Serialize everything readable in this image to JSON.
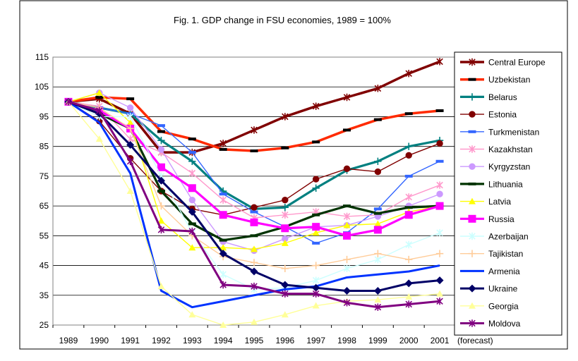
{
  "chart_data": {
    "type": "line",
    "title": "Fig. 1. GDP change in FSU economies, 1989 = 100%",
    "x": [
      "1989",
      "1990",
      "1991",
      "1992",
      "1993",
      "1994",
      "1995",
      "1996",
      "1997",
      "1998",
      "1999",
      "2000",
      "2001"
    ],
    "x_suffix_label": "(forecast)",
    "yticks": [
      "115",
      "105",
      "95",
      "85",
      "75",
      "65",
      "55",
      "45",
      "35",
      "25"
    ],
    "ylim": [
      25,
      115
    ],
    "grid": "horizontal",
    "legend_position": "right",
    "series": [
      {
        "name": "Central Europe",
        "color": "#800000",
        "marker": "x",
        "values": [
          100,
          101,
          96,
          83,
          83,
          86,
          90.5,
          95,
          98.5,
          101.5,
          104.5,
          109.5,
          113.5
        ]
      },
      {
        "name": "Uzbekistan",
        "color": "#ff2a00",
        "marker": "dash",
        "values": [
          100,
          101.5,
          101,
          90,
          87.5,
          84,
          83.5,
          84.5,
          86.5,
          90.5,
          94,
          96,
          97
        ]
      },
      {
        "name": "Belarus",
        "color": "#008080",
        "marker": "plus",
        "values": [
          100,
          98,
          96,
          87,
          80,
          70,
          64,
          64.5,
          71,
          77,
          80,
          85,
          87
        ]
      },
      {
        "name": "Estonia",
        "color": "#800000",
        "marker": "circle",
        "values": [
          100,
          93.5,
          81,
          70,
          64,
          62,
          64.5,
          67,
          74,
          77.5,
          76.5,
          82,
          86
        ]
      },
      {
        "name": "Turkmenistan",
        "color": "#3366ff",
        "marker": "dash",
        "values": [
          100,
          98,
          96,
          92,
          83,
          69,
          63,
          58,
          52.5,
          56,
          64,
          75,
          80
        ]
      },
      {
        "name": "Kazakhstan",
        "color": "#ff99cc",
        "marker": "x",
        "values": [
          100,
          98.5,
          87.5,
          83,
          76,
          67,
          61,
          62,
          63,
          61.5,
          62,
          68,
          72
        ]
      },
      {
        "name": "Kyrgyzstan",
        "color": "#cc99ff",
        "marker": "circle",
        "values": [
          100,
          103,
          98,
          84,
          67,
          53,
          50,
          54,
          58,
          58.5,
          61.5,
          65,
          69
        ]
      },
      {
        "name": "Lithuania",
        "color": "#003300",
        "marker": "dash",
        "values": [
          100,
          96,
          91,
          70,
          59,
          53.5,
          55,
          58,
          62,
          65,
          62.5,
          64.5,
          65
        ]
      },
      {
        "name": "Latvia",
        "color": "#ffff00",
        "marker": "triangle",
        "values": [
          100,
          103,
          93,
          60,
          51,
          51,
          50.5,
          52.5,
          56,
          58.5,
          59,
          63,
          65
        ]
      },
      {
        "name": "Russia",
        "color": "#ff00ff",
        "marker": "square",
        "values": [
          100,
          97,
          91,
          78,
          71,
          62,
          59.5,
          57.5,
          58,
          55,
          57,
          62,
          65
        ]
      },
      {
        "name": "Azerbaijan",
        "color": "#ccffff",
        "marker": "x",
        "values": [
          100,
          95,
          95,
          75,
          56,
          42,
          37,
          37.5,
          40,
          44,
          47,
          52,
          56
        ]
      },
      {
        "name": "Tajikistan",
        "color": "#ffcc99",
        "marker": "plus",
        "values": [
          100,
          98,
          91,
          65,
          55,
          48,
          46,
          44,
          45,
          47,
          49,
          47,
          49
        ]
      },
      {
        "name": "Armenia",
        "color": "#0033ff",
        "marker": "none",
        "values": [
          100,
          93,
          76,
          36.5,
          31,
          33,
          35,
          37,
          38,
          41,
          42,
          43,
          45
        ]
      },
      {
        "name": "Ukraine",
        "color": "#000066",
        "marker": "diamond",
        "values": [
          100,
          96,
          85.5,
          73.5,
          63,
          49,
          43,
          38.5,
          37.5,
          36.5,
          36.5,
          39,
          40
        ]
      },
      {
        "name": "Georgia",
        "color": "#ffff99",
        "marker": "triangle",
        "values": [
          100,
          87.5,
          70,
          38,
          28.5,
          25,
          26,
          28.5,
          31.5,
          33,
          33.5,
          34.5,
          35.5
        ]
      },
      {
        "name": "Moldova",
        "color": "#800080",
        "marker": "x",
        "values": [
          100,
          97,
          80,
          57,
          56.5,
          38.5,
          38,
          35.5,
          35.5,
          32.5,
          31,
          32,
          33
        ]
      }
    ]
  }
}
